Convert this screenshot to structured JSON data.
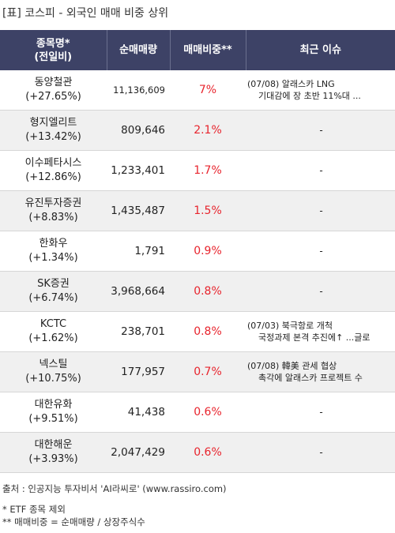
{
  "title": "[표] 코스피 - 외국인 매매 비중 상위",
  "headers": {
    "name_line1": "종목명*",
    "name_line2": "(전일비)",
    "net_volume": "순매매량",
    "ratio": "매매비중**",
    "issue": "최근 이슈"
  },
  "rows": [
    {
      "name": "동양철관",
      "change": "(+27.65%)",
      "net_volume": "11,136,609",
      "ratio": "7%",
      "issue_line1": "(07/08) 알래스카 LNG",
      "issue_line2": "기대감에 장 초반 11%대 ..."
    },
    {
      "name": "형지엘리트",
      "change": "(+13.42%)",
      "net_volume": "809,646",
      "ratio": "2.1%",
      "issue_line1": "-",
      "issue_line2": ""
    },
    {
      "name": "이수페타시스",
      "change": "(+12.86%)",
      "net_volume": "1,233,401",
      "ratio": "1.7%",
      "issue_line1": "-",
      "issue_line2": ""
    },
    {
      "name": "유진투자증권",
      "change": "(+8.83%)",
      "net_volume": "1,435,487",
      "ratio": "1.5%",
      "issue_line1": "-",
      "issue_line2": ""
    },
    {
      "name": "한화우",
      "change": "(+1.34%)",
      "net_volume": "1,791",
      "ratio": "0.9%",
      "issue_line1": "-",
      "issue_line2": ""
    },
    {
      "name": "SK증권",
      "change": "(+6.74%)",
      "net_volume": "3,968,664",
      "ratio": "0.8%",
      "issue_line1": "-",
      "issue_line2": ""
    },
    {
      "name": "KCTC",
      "change": "(+1.62%)",
      "net_volume": "238,701",
      "ratio": "0.8%",
      "issue_line1": "(07/03) 북극항로 개척",
      "issue_line2": "국정과제 본격 추진에↑ ...글로"
    },
    {
      "name": "넥스틸",
      "change": "(+10.75%)",
      "net_volume": "177,957",
      "ratio": "0.7%",
      "issue_line1": "(07/08) 韓美 관세 협상",
      "issue_line2": "촉각에 알래스카 프로젝트 수"
    },
    {
      "name": "대한유화",
      "change": "(+9.51%)",
      "net_volume": "41,438",
      "ratio": "0.6%",
      "issue_line1": "-",
      "issue_line2": ""
    },
    {
      "name": "대한해운",
      "change": "(+3.93%)",
      "net_volume": "2,047,429",
      "ratio": "0.6%",
      "issue_line1": "-",
      "issue_line2": ""
    }
  ],
  "footer": {
    "source": "출처 : 인공지능 투자비서 'AI라씨로' (www.rassiro.com)",
    "note1": "* ETF 종목 제외",
    "note2": "** 매매비중 = 순매매량 / 상장주식수"
  },
  "colors": {
    "header_bg": "#3d4266",
    "ratio_text": "#e8242d",
    "stripe": "#f0f0f0"
  }
}
